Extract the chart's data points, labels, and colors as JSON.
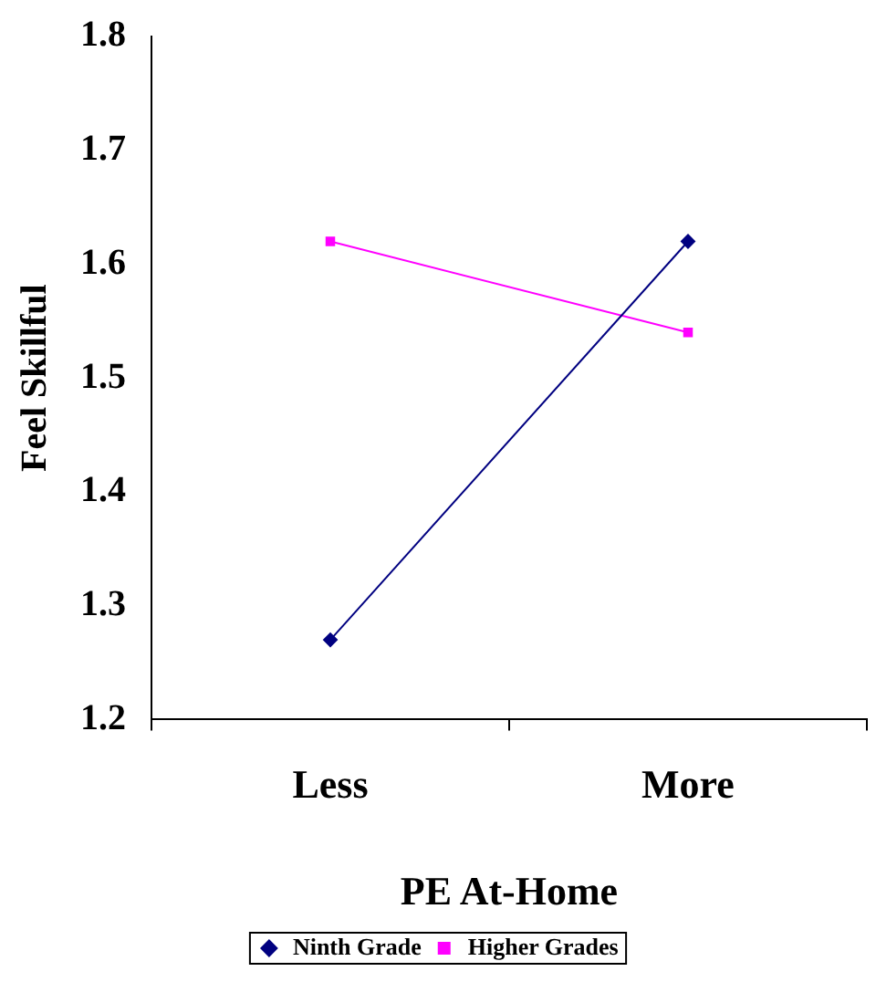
{
  "chart_data": {
    "type": "line",
    "xlabel": "PE At-Home",
    "ylabel": "Feel Skillful",
    "categories": [
      "Less",
      "More"
    ],
    "series": [
      {
        "name": "Ninth Grade",
        "color": "#000080",
        "values": [
          1.27,
          1.62
        ],
        "marker": "diamond"
      },
      {
        "name": "Higher Grades",
        "color": "#ff00ff",
        "values": [
          1.62,
          1.54
        ],
        "marker": "square"
      }
    ],
    "ylim": [
      1.2,
      1.8
    ],
    "yticks": [
      1.2,
      1.3,
      1.4,
      1.5,
      1.6,
      1.7,
      1.8
    ],
    "legend": "bottom",
    "line_style": "solid"
  }
}
